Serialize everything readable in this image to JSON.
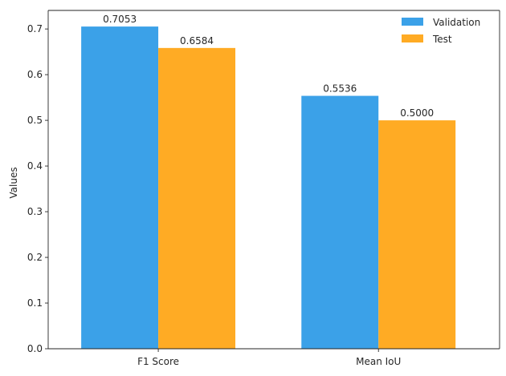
{
  "chart_data": {
    "type": "bar",
    "categories": [
      "F1 Score",
      "Mean IoU"
    ],
    "series": [
      {
        "name": "Validation",
        "values": [
          0.7053,
          0.5536
        ],
        "labels": [
          "0.7053",
          "0.5536"
        ],
        "color": "#3BA1E8"
      },
      {
        "name": "Test",
        "values": [
          0.6584,
          0.5
        ],
        "labels": [
          "0.6584",
          "0.5000"
        ],
        "color": "#FFAB24"
      }
    ],
    "title": "",
    "xlabel": "",
    "ylabel": "Values",
    "ylim": [
      0,
      0.7406
    ],
    "yticks": [
      0.0,
      0.1,
      0.2,
      0.3,
      0.4,
      0.5,
      0.6,
      0.7
    ],
    "ytick_labels": [
      "0.0",
      "0.1",
      "0.2",
      "0.3",
      "0.4",
      "0.5",
      "0.6",
      "0.7"
    ],
    "grid": false,
    "legend_position": "top-right"
  }
}
